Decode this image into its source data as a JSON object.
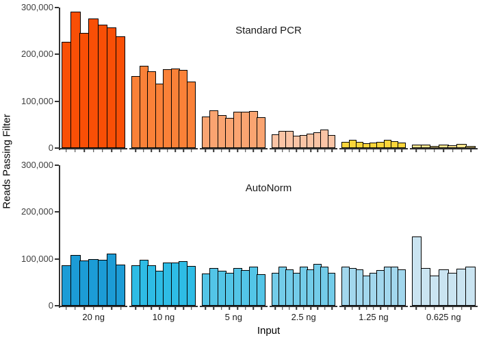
{
  "figure": {
    "y_axis_label": "Reads Passing Filter",
    "x_axis_label": "Input",
    "y_ticks": [
      {
        "label": "300,000",
        "value": 300000
      },
      {
        "label": "200,000",
        "value": 200000
      },
      {
        "label": "100,000",
        "value": 100000
      },
      {
        "label": "0",
        "value": 0
      }
    ],
    "y_max": 300000
  },
  "chart_data": [
    {
      "type": "bar",
      "title": "Standard PCR",
      "ylabel": "Reads Passing Filter",
      "xlabel": "Input",
      "ylim": [
        0,
        300000
      ],
      "grid": false,
      "legend": "none",
      "categories": [
        "20 ng",
        "10 ng",
        "5 ng",
        "2.5 ng",
        "1.25 ng",
        "0.625 ng"
      ],
      "groups": [
        {
          "label": "20 ng",
          "color": "#F94F06",
          "values": [
            227000,
            292000,
            246000,
            276000,
            264000,
            257000,
            239000
          ]
        },
        {
          "label": "10 ng",
          "color": "#FA8138",
          "values": [
            154000,
            175000,
            164000,
            137000,
            168000,
            170000,
            167000,
            142000
          ]
        },
        {
          "label": "5 ng",
          "color": "#FAA471",
          "values": [
            68000,
            81000,
            71000,
            64000,
            77000,
            77000,
            79000,
            66000
          ]
        },
        {
          "label": "2.5 ng",
          "color": "#FAC4A5",
          "values": [
            30000,
            36000,
            37000,
            26000,
            28000,
            31000,
            33000,
            39000,
            28000
          ]
        },
        {
          "label": "1.25 ng",
          "color": "#FBD53A",
          "values": [
            13000,
            18000,
            13000,
            10000,
            12000,
            13000,
            17000,
            15000,
            12000
          ]
        },
        {
          "label": "0.625 ng",
          "color": "#FAE38C",
          "values": [
            8000,
            7000,
            5000,
            7000,
            6000,
            9000,
            5000
          ]
        }
      ]
    },
    {
      "type": "bar",
      "title": "AutoNorm",
      "ylabel": "Reads Passing Filter",
      "xlabel": "Input",
      "ylim": [
        0,
        300000
      ],
      "grid": false,
      "legend": "none",
      "categories": [
        "20 ng",
        "10 ng",
        "5 ng",
        "2.5 ng",
        "1.25 ng",
        "0.625 ng"
      ],
      "groups": [
        {
          "label": "20 ng",
          "color": "#1C9CD6",
          "values": [
            87000,
            108000,
            97000,
            100000,
            98000,
            111000,
            88000
          ]
        },
        {
          "label": "10 ng",
          "color": "#2EBCE5",
          "values": [
            86000,
            98000,
            87000,
            75000,
            92000,
            93000,
            95000,
            85000
          ]
        },
        {
          "label": "5 ng",
          "color": "#53C5E7",
          "values": [
            69000,
            81000,
            74000,
            70000,
            81000,
            76000,
            84000,
            68000
          ]
        },
        {
          "label": "2.5 ng",
          "color": "#73CCE9",
          "values": [
            71000,
            84000,
            77000,
            70000,
            83000,
            78000,
            89000,
            84000,
            71000
          ]
        },
        {
          "label": "1.25 ng",
          "color": "#A2D7ED",
          "values": [
            84000,
            81000,
            78000,
            64000,
            70000,
            76000,
            84000,
            83000,
            77000
          ]
        },
        {
          "label": "0.625 ng",
          "color": "#CAE4F1",
          "values": [
            148000,
            80000,
            64000,
            78000,
            70000,
            79000,
            84000
          ]
        }
      ]
    }
  ]
}
